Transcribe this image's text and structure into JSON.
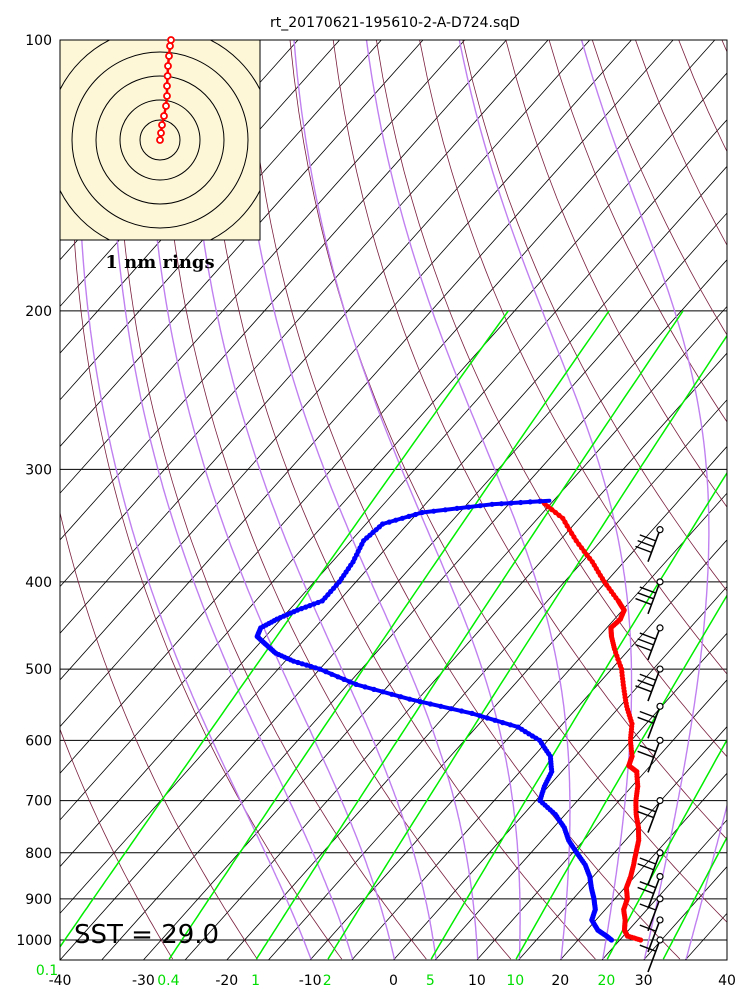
{
  "title": "rt_20170621-195610-2-A-D724.sqD",
  "sst_label": "SST = 29.0",
  "hodograph_label": "1 nm rings",
  "colors": {
    "temperature": "#ff0000",
    "dewpoint": "#0000ff",
    "dry_adiabat": "#7a1f3d",
    "moist_adiabat": "#c080f0",
    "mixing_ratio": "#00ee00",
    "isotherm": "#000000",
    "hodo_bg": "#fdf7d8"
  },
  "chart_data": {
    "type": "skew-t log-p sounding",
    "title": "rt_20170621-195610-2-A-D724.sqD",
    "pressure_ticks": [
      "100",
      "200",
      "300",
      "400",
      "500",
      "600",
      "700",
      "800",
      "900",
      "1000"
    ],
    "temperature_ticks": [
      "-40",
      "-30",
      "-20",
      "-10",
      "0",
      "10",
      "20",
      "30",
      "40"
    ],
    "mixing_ratio_ticks": [
      "0.1",
      "0.4",
      "1",
      "2",
      "5",
      "10",
      "20"
    ],
    "pressure_range_hpa": [
      100,
      1050
    ],
    "temperature_range_c": [
      -40,
      40
    ],
    "temperature_profile": {
      "p": [
        1000,
        990,
        975,
        950,
        925,
        900,
        875,
        850,
        825,
        800,
        775,
        750,
        725,
        700,
        675,
        650,
        640,
        625,
        600,
        575,
        550,
        525,
        500,
        475,
        460,
        450,
        440,
        430,
        420,
        400,
        380,
        360,
        340,
        325
      ],
      "t": [
        27.5,
        25.5,
        24.5,
        23.5,
        22.2,
        21.5,
        20.2,
        19.5,
        18.6,
        17.6,
        16.6,
        15.2,
        13.5,
        12.0,
        10.7,
        9.0,
        7.4,
        6.8,
        4.9,
        3.3,
        0.8,
        -1.5,
        -3.8,
        -6.8,
        -8.5,
        -9.5,
        -9.3,
        -9.8,
        -11.5,
        -15.2,
        -18.8,
        -23.0,
        -27.0,
        -31.5
      ]
    },
    "dewpoint_profile": {
      "p": [
        1000,
        990,
        975,
        950,
        925,
        900,
        875,
        850,
        825,
        800,
        775,
        750,
        725,
        700,
        675,
        650,
        625,
        600,
        580,
        560,
        540,
        520,
        500,
        490,
        480,
        470,
        460,
        450,
        440,
        430,
        420,
        400,
        380,
        360,
        345,
        335,
        328,
        325
      ],
      "td": [
        24.0,
        23.0,
        21.3,
        19.5,
        18.8,
        17.5,
        16.0,
        14.6,
        12.8,
        10.5,
        8.2,
        6.3,
        3.8,
        0.5,
        -0.5,
        -1.2,
        -3.0,
        -6.0,
        -10.0,
        -17.0,
        -26.0,
        -34.0,
        -40.0,
        -44.0,
        -47.0,
        -49.0,
        -51.0,
        -51.5,
        -50.5,
        -49.0,
        -47.0,
        -47.0,
        -47.5,
        -48.5,
        -48.0,
        -44.5,
        -37.0,
        -30.5
      ]
    },
    "wind_barbs": [
      {
        "p": 1000,
        "dir_deg": 90,
        "speed_kt": 10
      },
      {
        "p": 950,
        "dir_deg": 95,
        "speed_kt": 10
      },
      {
        "p": 900,
        "dir_deg": 95,
        "speed_kt": 10
      },
      {
        "p": 850,
        "dir_deg": 100,
        "speed_kt": 15
      },
      {
        "p": 800,
        "dir_deg": 100,
        "speed_kt": 15
      },
      {
        "p": 700,
        "dir_deg": 95,
        "speed_kt": 20
      },
      {
        "p": 600,
        "dir_deg": 80,
        "speed_kt": 20
      },
      {
        "p": 550,
        "dir_deg": 70,
        "speed_kt": 15
      },
      {
        "p": 500,
        "dir_deg": 75,
        "speed_kt": 30
      },
      {
        "p": 450,
        "dir_deg": 85,
        "speed_kt": 30
      },
      {
        "p": 400,
        "dir_deg": 95,
        "speed_kt": 30
      },
      {
        "p": 350,
        "dir_deg": 100,
        "speed_kt": 30
      }
    ],
    "hodograph": {
      "rings": 5,
      "track": [
        [
          0.0,
          0.0
        ],
        [
          0.05,
          0.35
        ],
        [
          0.1,
          0.75
        ],
        [
          0.2,
          1.2
        ],
        [
          0.3,
          1.7
        ],
        [
          0.35,
          2.2
        ],
        [
          0.35,
          2.7
        ],
        [
          0.38,
          3.2
        ],
        [
          0.4,
          3.7
        ],
        [
          0.45,
          4.2
        ],
        [
          0.5,
          4.7
        ],
        [
          0.55,
          5.0
        ]
      ]
    }
  }
}
